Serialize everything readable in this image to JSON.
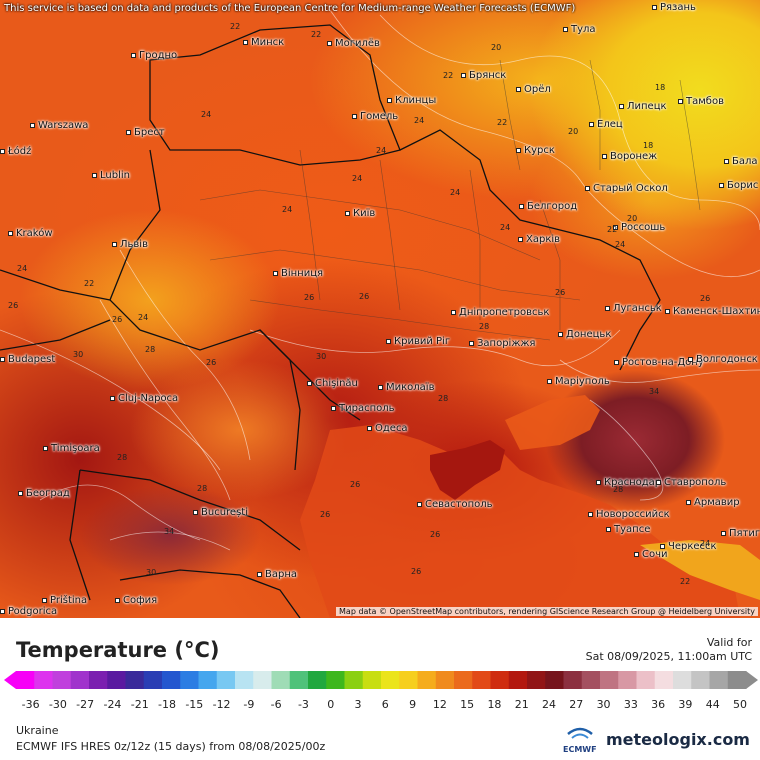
{
  "disclaimer": "This service is based on data and products of the European Centre for Medium-range Weather Forecasts (ECMWF)",
  "map_credit": "Map data © OpenStreetMap contributors, rendering GIScience Research Group @ Heidelberg University",
  "cities": [
    {
      "name": "Рязань"
    },
    {
      "name": "Гродно"
    },
    {
      "name": "Минск"
    },
    {
      "name": "Могилёв"
    },
    {
      "name": "Тула"
    },
    {
      "name": "Брянск"
    },
    {
      "name": "Клинцы"
    },
    {
      "name": "Орёл"
    },
    {
      "name": "Тамбов"
    },
    {
      "name": "Липецк"
    },
    {
      "name": "Warszawa"
    },
    {
      "name": "Брест"
    },
    {
      "name": "Гомель"
    },
    {
      "name": "Елец"
    },
    {
      "name": "Курск"
    },
    {
      "name": "Воронеж"
    },
    {
      "name": "Łódź"
    },
    {
      "name": "Lublin"
    },
    {
      "name": "Старый Оскол"
    },
    {
      "name": "Бала"
    },
    {
      "name": "Борис"
    },
    {
      "name": "Київ"
    },
    {
      "name": "Белгород"
    },
    {
      "name": "Kraków"
    },
    {
      "name": "Львів"
    },
    {
      "name": "Харків"
    },
    {
      "name": "Россошь"
    },
    {
      "name": "Вінниця"
    },
    {
      "name": "Луганськ"
    },
    {
      "name": "Дніпропетровськ"
    },
    {
      "name": "Каменск-Шахтинский"
    },
    {
      "name": "Кривий Ріг"
    },
    {
      "name": "Запоріжжя"
    },
    {
      "name": "Донецьк"
    },
    {
      "name": "Budapest"
    },
    {
      "name": "Chişinău"
    },
    {
      "name": "Ростов-на-Дону"
    },
    {
      "name": "Волгодонск"
    },
    {
      "name": "Cluj-Napoca"
    },
    {
      "name": "Миколаїв"
    },
    {
      "name": "Маріуполь"
    },
    {
      "name": "Тирасполь"
    },
    {
      "name": "Одеса"
    },
    {
      "name": "Timişoara"
    },
    {
      "name": "Краснодар"
    },
    {
      "name": "Ставрополь"
    },
    {
      "name": "Београд"
    },
    {
      "name": "Армавир"
    },
    {
      "name": "Севастополь"
    },
    {
      "name": "Новороссийск"
    },
    {
      "name": "București"
    },
    {
      "name": "Туапсе"
    },
    {
      "name": "Черкесск"
    },
    {
      "name": "Пятиг"
    },
    {
      "name": "Сочи"
    },
    {
      "name": "Варна"
    },
    {
      "name": "Priština"
    },
    {
      "name": "София"
    },
    {
      "name": "Podgorica"
    }
  ],
  "isotherm_labels": [
    {
      "value": "22"
    },
    {
      "value": "22"
    },
    {
      "value": "20"
    },
    {
      "value": "22"
    },
    {
      "value": "18"
    },
    {
      "value": "24"
    },
    {
      "value": "24"
    },
    {
      "value": "22"
    },
    {
      "value": "20"
    },
    {
      "value": "18"
    },
    {
      "value": "24"
    },
    {
      "value": "24"
    },
    {
      "value": "24"
    },
    {
      "value": "24"
    },
    {
      "value": "20"
    },
    {
      "value": "22"
    },
    {
      "value": "24"
    },
    {
      "value": "24"
    },
    {
      "value": "22"
    },
    {
      "value": "24"
    },
    {
      "value": "26"
    },
    {
      "value": "26"
    },
    {
      "value": "26"
    },
    {
      "value": "26"
    },
    {
      "value": "26"
    },
    {
      "value": "28"
    },
    {
      "value": "26"
    },
    {
      "value": "24"
    },
    {
      "value": "30"
    },
    {
      "value": "28"
    },
    {
      "value": "30"
    },
    {
      "value": "26"
    },
    {
      "value": "28"
    },
    {
      "value": "28"
    },
    {
      "value": "34"
    },
    {
      "value": "26"
    },
    {
      "value": "34"
    },
    {
      "value": "30"
    },
    {
      "value": "28"
    },
    {
      "value": "28"
    },
    {
      "value": "26"
    },
    {
      "value": "24"
    },
    {
      "value": "22"
    },
    {
      "value": "26"
    },
    {
      "value": "26"
    }
  ],
  "legend": {
    "title": "Temperature (°C)",
    "valid_label": "Valid for",
    "valid_time": "Sat 08/09/2025, 11:00am UTC",
    "tick_labels": [
      "-36",
      "-30",
      "-27",
      "-24",
      "-21",
      "-18",
      "-15",
      "-12",
      "-9",
      "-6",
      "-3",
      "0",
      "3",
      "6",
      "9",
      "12",
      "15",
      "18",
      "21",
      "24",
      "27",
      "30",
      "33",
      "36",
      "39",
      "44",
      "50"
    ],
    "colors": [
      "#f700f7",
      "#dd33ee",
      "#c040dd",
      "#a033cc",
      "#7b1fb0",
      "#5a1aa0",
      "#3a2a9a",
      "#2a3eb4",
      "#2457cf",
      "#2c7de3",
      "#45a6ee",
      "#78c8f2",
      "#b8e3f2",
      "#d8ecec",
      "#9fdcb6",
      "#4fc27a",
      "#21a83f",
      "#3eb71d",
      "#8bd012",
      "#c8de12",
      "#ebe41c",
      "#f6cf1e",
      "#f5ac1c",
      "#f08a1d",
      "#eb6a1c",
      "#e24a17",
      "#cf2c10",
      "#b3180f",
      "#911516",
      "#76141c",
      "#8c3040",
      "#a45060",
      "#bf7482",
      "#d898a4",
      "#ecc0c8",
      "#f4dde0",
      "#dddddd",
      "#c4c4c4",
      "#a6a6a6",
      "#8c8c8c"
    ]
  },
  "footer": {
    "region": "Ukraine",
    "model_info": "ECMWF IFS HRES 0z/12z (15 days) from  08/08/2025/00z",
    "ecmwf_logo_text": "ECMWF",
    "brand": "meteologix.com"
  }
}
